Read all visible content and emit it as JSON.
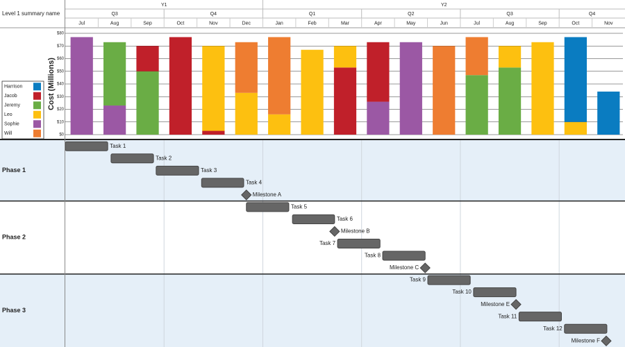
{
  "header": {
    "title": "Level 1 summary name"
  },
  "timeline": {
    "years": [
      {
        "label": "Y1",
        "span": 6
      },
      {
        "label": "Y2",
        "span": 11
      }
    ],
    "quarters": [
      {
        "label": "Q3",
        "span": 3
      },
      {
        "label": "Q4",
        "span": 3
      },
      {
        "label": "Q1",
        "span": 3
      },
      {
        "label": "Q2",
        "span": 3
      },
      {
        "label": "Q3",
        "span": 3
      },
      {
        "label": "Q4",
        "span": 2
      }
    ]
  },
  "chart_data": {
    "type": "bar",
    "stacked": true,
    "ylabel": "Cost (Millions)",
    "categories": [
      "Jul",
      "Aug",
      "Sep",
      "Oct",
      "Nov",
      "Dec",
      "Jan",
      "Feb",
      "Mar",
      "Apr",
      "May",
      "Jun",
      "Jul",
      "Aug",
      "Sep",
      "Oct",
      "Nov"
    ],
    "series": [
      {
        "name": "Harrison",
        "color": "#0a7cc1",
        "values": [
          null,
          null,
          null,
          null,
          null,
          null,
          null,
          null,
          null,
          null,
          null,
          null,
          null,
          null,
          null,
          67,
          34
        ]
      },
      {
        "name": "Jacob",
        "color": "#c0202a",
        "values": [
          null,
          null,
          20,
          77,
          3,
          null,
          null,
          null,
          53,
          47,
          null,
          null,
          null,
          null,
          null,
          null,
          null
        ]
      },
      {
        "name": "Jeremy",
        "color": "#6aad45",
        "values": [
          null,
          50,
          50,
          null,
          null,
          null,
          null,
          null,
          null,
          null,
          null,
          null,
          47,
          53,
          null,
          null,
          null
        ]
      },
      {
        "name": "Leo",
        "color": "#fdc010",
        "values": [
          null,
          null,
          null,
          null,
          67,
          33,
          16,
          67,
          17,
          null,
          null,
          null,
          null,
          17,
          73,
          10,
          null
        ]
      },
      {
        "name": "Sophie",
        "color": "#9b58a4",
        "values": [
          77,
          23,
          null,
          null,
          null,
          null,
          null,
          null,
          null,
          26,
          73,
          null,
          null,
          null,
          null,
          null,
          null
        ]
      },
      {
        "name": "Will",
        "color": "#ee7d31",
        "values": [
          null,
          null,
          null,
          null,
          null,
          40,
          61,
          null,
          null,
          null,
          null,
          70,
          30,
          null,
          null,
          null,
          null
        ]
      }
    ],
    "stack_order": [
      "Sophie",
      "Jeremy",
      "Jacob",
      "Leo",
      "Will",
      "Harrison"
    ],
    "ylim": [
      0,
      80
    ],
    "yticks": [
      {
        "value": 0,
        "label": "$0"
      },
      {
        "value": 10,
        "label": "$10"
      },
      {
        "value": 20,
        "label": "$20"
      },
      {
        "value": 30,
        "label": "$30"
      },
      {
        "value": 40,
        "label": "$40"
      },
      {
        "value": 50,
        "label": "$50"
      },
      {
        "value": 60,
        "label": "$60"
      },
      {
        "value": 70,
        "label": "$70"
      },
      {
        "value": 80,
        "label": "$80"
      }
    ],
    "grid": true,
    "legend": "bottom-left"
  },
  "gantt": {
    "xlim": [
      0,
      17
    ],
    "phases": [
      {
        "name": "Phase 1",
        "items": [
          {
            "label": "Task 1",
            "start": 0,
            "end": 1.29,
            "label_side": "right"
          },
          {
            "label": "Task 2",
            "start": 1.39,
            "end": 2.68,
            "label_side": "right"
          },
          {
            "label": "Task 3",
            "start": 2.76,
            "end": 4.05,
            "label_side": "right"
          },
          {
            "label": "Task 4",
            "start": 4.14,
            "end": 5.42,
            "label_side": "right"
          },
          {
            "label": "Milestone A",
            "at": 5.5,
            "label_side": "right"
          }
        ]
      },
      {
        "name": "Phase 2",
        "items": [
          {
            "label": "Task 5",
            "start": 5.5,
            "end": 6.79,
            "label_side": "right"
          },
          {
            "label": "Task 6",
            "start": 6.9,
            "end": 8.18,
            "label_side": "right"
          },
          {
            "label": "Milestone B",
            "at": 8.18,
            "label_side": "right"
          },
          {
            "label": "Task 7",
            "start": 8.27,
            "end": 9.56,
            "label_side": "left"
          },
          {
            "label": "Task 8",
            "start": 9.64,
            "end": 10.93,
            "label_side": "left"
          },
          {
            "label": "Milestone C",
            "at": 10.93,
            "label_side": "left"
          }
        ]
      },
      {
        "name": "Phase 3",
        "items": [
          {
            "label": "Task 9",
            "start": 11.01,
            "end": 12.3,
            "label_side": "left"
          },
          {
            "label": "Task 10",
            "start": 12.4,
            "end": 13.69,
            "label_side": "left"
          },
          {
            "label": "Milestone E",
            "at": 13.69,
            "label_side": "left"
          },
          {
            "label": "Task 11",
            "start": 13.78,
            "end": 15.07,
            "label_side": "left"
          },
          {
            "label": "Task 12",
            "start": 15.16,
            "end": 16.45,
            "label_side": "left"
          },
          {
            "label": "Milestone F",
            "at": 16.43,
            "label_side": "left"
          }
        ]
      }
    ]
  }
}
